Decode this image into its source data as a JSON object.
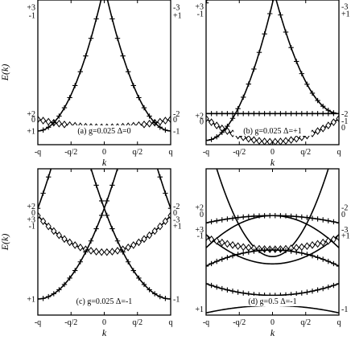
{
  "chart_data": [
    {
      "type": "line",
      "annotation": "(a) g=0.025  Δ=0",
      "xlabel": "k",
      "ylabel": "E(k)",
      "xticks": [
        "-q",
        "-q/2",
        "0",
        "q/2",
        "q"
      ],
      "xlim": [
        -1,
        1
      ],
      "ylim": [
        0,
        1
      ],
      "left_labels": [
        {
          "text": "+3",
          "y": 0.95
        },
        {
          "text": "-1",
          "y": 0.895
        },
        {
          "text": "+2",
          "y": 0.215
        },
        {
          "text": "0",
          "y": 0.175
        },
        {
          "text": "+1",
          "y": 0.095
        }
      ],
      "right_labels": [
        {
          "text": "-3",
          "y": 0.95
        },
        {
          "text": "+1",
          "y": 0.895
        },
        {
          "text": "-2",
          "y": 0.215
        },
        {
          "text": "0",
          "y": 0.175
        },
        {
          "text": "-1",
          "y": 0.095
        }
      ],
      "bands": [
        {
          "kind": "parabola",
          "center": 0,
          "min": 0.12,
          "curv": 0.055,
          "marker": "diamond"
        },
        {
          "kind": "parabola",
          "center": -1,
          "min": 0.095,
          "curv": 1.0,
          "marker": "plus"
        },
        {
          "kind": "parabola",
          "center": 1,
          "min": 0.095,
          "curv": 1.0,
          "marker": "plus"
        },
        {
          "kind": "parabola",
          "center": -2,
          "min": 0.095,
          "curv": 1.0,
          "marker": "plus"
        },
        {
          "kind": "parabola",
          "center": 2,
          "min": 0.095,
          "curv": 1.0,
          "marker": "plus"
        }
      ]
    },
    {
      "type": "line",
      "annotation": "(b) g=0.025  Δ=+1",
      "xlabel": "k",
      "ylabel": "",
      "xticks": [
        "-q",
        "-q/2",
        "0",
        "q/2",
        "q"
      ],
      "xlim": [
        -1,
        1
      ],
      "ylim": [
        0,
        1
      ],
      "left_labels": [
        {
          "text": "+3",
          "y": 0.955
        },
        {
          "text": "-1",
          "y": 0.905
        },
        {
          "text": "+2",
          "y": 0.2
        },
        {
          "text": "0",
          "y": 0.16
        }
      ],
      "right_labels": [
        {
          "text": "-3",
          "y": 0.955
        },
        {
          "text": "+1",
          "y": 0.905
        },
        {
          "text": "-2",
          "y": 0.215
        },
        {
          "text": "-1",
          "y": 0.165
        },
        {
          "text": "0",
          "y": 0.12
        }
      ],
      "bands": [
        {
          "kind": "parabola",
          "center": 0,
          "min": 0.02,
          "curv": 0.16,
          "marker": "diamond"
        },
        {
          "kind": "flat",
          "value": 0.215,
          "marker": "plus"
        },
        {
          "kind": "parabola",
          "center": -1,
          "min": 0.03,
          "curv": 0.95,
          "marker": "plus"
        },
        {
          "kind": "parabola",
          "center": 1,
          "min": 0.215,
          "curv": 0.88,
          "marker": "plus"
        },
        {
          "kind": "parabola",
          "center": -2,
          "min": 0.03,
          "curv": 0.95,
          "marker": "plus"
        },
        {
          "kind": "parabola",
          "center": 2,
          "min": 0.215,
          "curv": 0.88,
          "marker": "plus"
        }
      ]
    },
    {
      "type": "line",
      "annotation": "(c) g=0.025  Δ=-1",
      "xlabel": "k",
      "ylabel": "E(k)",
      "xticks": [
        "-q",
        "-q/2",
        "0",
        "q/2",
        "q"
      ],
      "xlim": [
        -1,
        1
      ],
      "ylim": [
        0,
        1
      ],
      "left_labels": [
        {
          "text": "+2",
          "y": 0.745
        },
        {
          "text": "0",
          "y": 0.7
        },
        {
          "text": "+3",
          "y": 0.655
        },
        {
          "text": "-1",
          "y": 0.61
        },
        {
          "text": "+1",
          "y": 0.11
        }
      ],
      "right_labels": [
        {
          "text": "-2",
          "y": 0.745
        },
        {
          "text": "0",
          "y": 0.7
        },
        {
          "text": "-3",
          "y": 0.655
        },
        {
          "text": "+1",
          "y": 0.61
        },
        {
          "text": "-1",
          "y": 0.11
        }
      ],
      "bands": [
        {
          "kind": "parabola",
          "center": 0,
          "min": 0.43,
          "curv": 0.25,
          "marker": "diamond"
        },
        {
          "kind": "parabola",
          "center": -1,
          "min": 0.11,
          "curv": 0.62,
          "marker": "plus"
        },
        {
          "kind": "parabola",
          "center": 1,
          "min": 0.11,
          "curv": 0.62,
          "marker": "plus"
        },
        {
          "kind": "parabola",
          "center": -2,
          "min": 0.11,
          "curv": 0.62,
          "marker": "plus"
        },
        {
          "kind": "parabola",
          "center": 2,
          "min": 0.11,
          "curv": 0.62,
          "marker": "plus"
        }
      ]
    },
    {
      "type": "line",
      "annotation": "(d) g=0.5  Δ=-1",
      "xlabel": "k",
      "ylabel": "",
      "xticks": [
        "-q",
        "-q/2",
        "0",
        "q/2",
        "q"
      ],
      "xlim": [
        -1,
        1
      ],
      "ylim": [
        0,
        1
      ],
      "left_labels": [
        {
          "text": "+2",
          "y": 0.735
        },
        {
          "text": "0",
          "y": 0.69
        },
        {
          "text": "+3",
          "y": 0.585
        },
        {
          "text": "-1",
          "y": 0.545
        },
        {
          "text": "+1",
          "y": 0.04
        }
      ],
      "right_labels": [
        {
          "text": "-2",
          "y": 0.735
        },
        {
          "text": "0",
          "y": 0.69
        },
        {
          "text": "-3",
          "y": 0.585
        },
        {
          "text": "+1",
          "y": 0.545
        },
        {
          "text": "-1",
          "y": 0.04
        }
      ],
      "bands": [
        {
          "kind": "parabola",
          "center": 0,
          "min": 0.065,
          "curv": -0.05,
          "marker": "none"
        },
        {
          "kind": "parabola",
          "center": 0,
          "min": 0.35,
          "curv": 0.2,
          "marker": "none"
        },
        {
          "kind": "parabola",
          "center": 0,
          "min": 0.68,
          "curv": -0.22,
          "marker": "none"
        },
        {
          "kind": "parabola",
          "center": 0,
          "min": 0.4,
          "curv": 0.85,
          "marker": "none"
        },
        {
          "kind": "parabola",
          "center": 0,
          "min": 0.45,
          "curv": 0.08,
          "marker": "diamond"
        },
        {
          "kind": "parabola",
          "center": 0,
          "min": 0.445,
          "curv": -0.11,
          "marker": "plus"
        },
        {
          "kind": "parabola",
          "center": 0,
          "min": 0.68,
          "curv": -0.05,
          "marker": "plus"
        },
        {
          "kind": "parabola",
          "center": 0,
          "min": 0.135,
          "curv": 0.08,
          "marker": "plus"
        }
      ]
    }
  ]
}
